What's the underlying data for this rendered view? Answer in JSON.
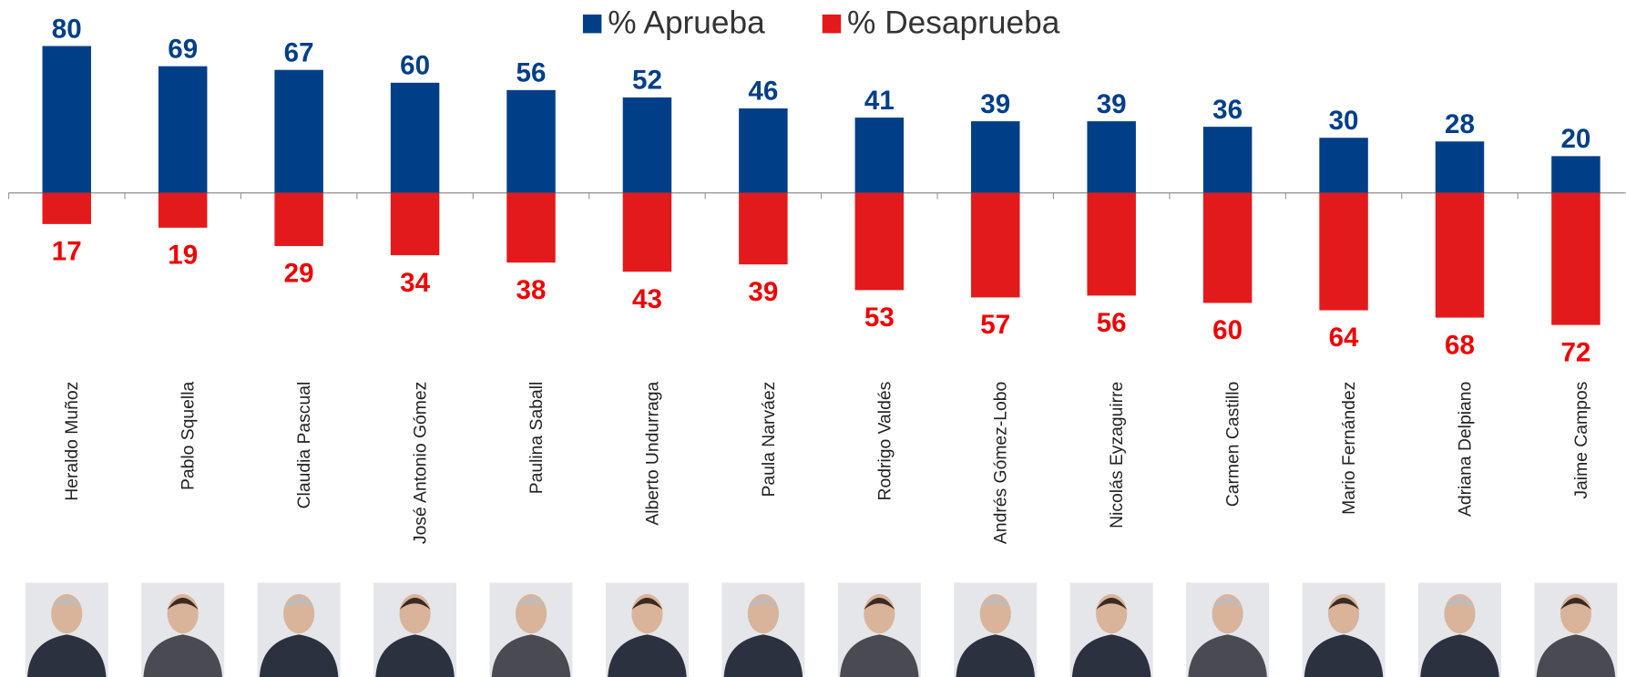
{
  "chart_data": {
    "type": "diverging_bar",
    "categories": [
      "Heraldo Muñoz",
      "Pablo Squella",
      "Claudia Pascual",
      "José Antonio Gómez",
      "Paulina Saball",
      "Alberto Undurraga",
      "Paula Narváez",
      "Rodrigo Valdés",
      "Andrés Gómez-Lobo",
      "Nicolás Eyzaguirre",
      "Carmen Castillo",
      "Mario Fernández",
      "Adriana Delpiano",
      "Jaime Campos"
    ],
    "series": [
      {
        "name": "% Aprueba",
        "color": "#003f87",
        "label_color": "#003f87",
        "direction": "up",
        "values": [
          80,
          69,
          67,
          60,
          56,
          52,
          46,
          41,
          39,
          39,
          36,
          30,
          28,
          20
        ]
      },
      {
        "name": "% Desaprueba",
        "color": "#e31a1c",
        "label_color": "#f00000",
        "direction": "down",
        "values": [
          17,
          19,
          29,
          34,
          38,
          43,
          39,
          53,
          57,
          56,
          60,
          64,
          68,
          72
        ]
      }
    ],
    "legend": "top"
  }
}
